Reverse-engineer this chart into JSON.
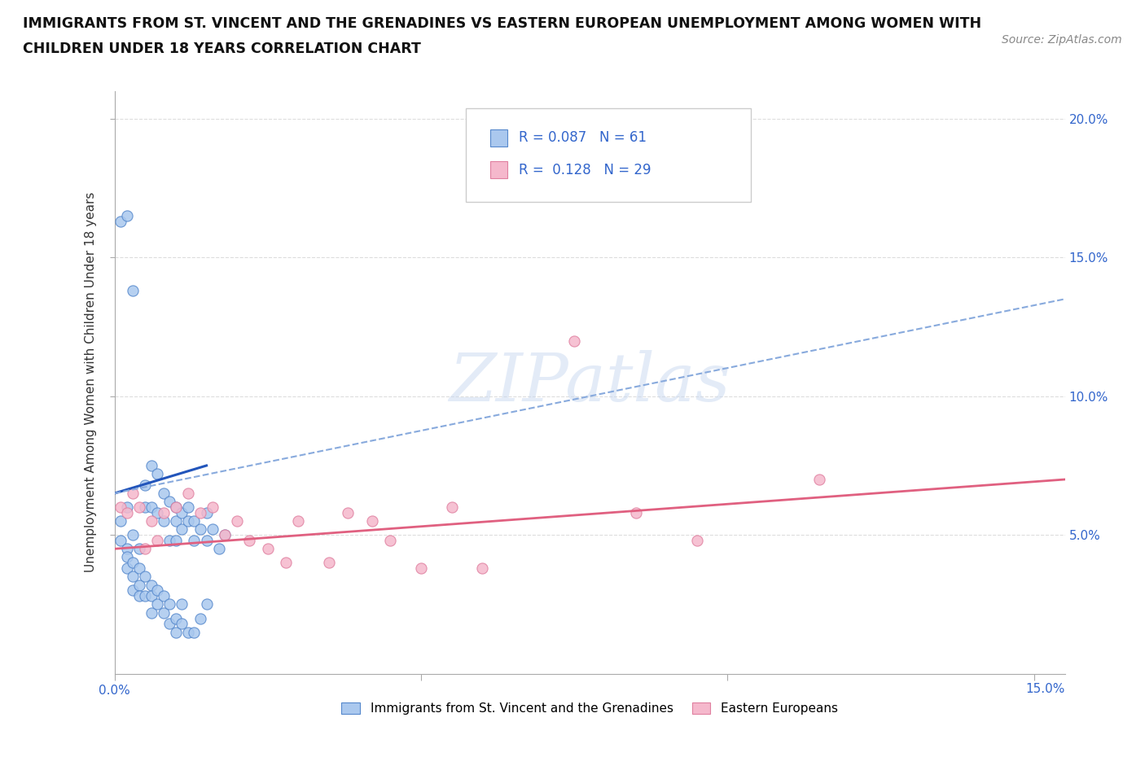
{
  "title_line1": "IMMIGRANTS FROM ST. VINCENT AND THE GRENADINES VS EASTERN EUROPEAN UNEMPLOYMENT AMONG WOMEN WITH",
  "title_line2": "CHILDREN UNDER 18 YEARS CORRELATION CHART",
  "source": "Source: ZipAtlas.com",
  "ylabel": "Unemployment Among Women with Children Under 18 years",
  "xlim": [
    0,
    0.155
  ],
  "ylim": [
    0,
    0.21
  ],
  "xticks": [
    0.0,
    0.05,
    0.1,
    0.15
  ],
  "yticks": [
    0.05,
    0.1,
    0.15,
    0.2
  ],
  "xtick_labels": [
    "0.0%",
    "",
    "",
    ""
  ],
  "ytick_labels": [
    "5.0%",
    "10.0%",
    "15.0%",
    "20.0%"
  ],
  "blue_face": "#aac8ee",
  "blue_edge": "#5588cc",
  "pink_face": "#f5b8cc",
  "pink_edge": "#e080a0",
  "trend_blue_solid": "#2255bb",
  "trend_blue_dash": "#88aadd",
  "trend_pink": "#e06080",
  "grid_color": "#dddddd",
  "R_blue": "0.087",
  "N_blue": "61",
  "R_pink": "0.128",
  "N_pink": "29",
  "legend_blue": "Immigrants from St. Vincent and the Grenadines",
  "legend_pink": "Eastern Europeans",
  "watermark_text": "ZIPatlas",
  "blue_x": [
    0.001,
    0.002,
    0.002,
    0.003,
    0.004,
    0.005,
    0.005,
    0.006,
    0.006,
    0.007,
    0.007,
    0.008,
    0.008,
    0.009,
    0.009,
    0.01,
    0.01,
    0.01,
    0.011,
    0.011,
    0.012,
    0.012,
    0.013,
    0.013,
    0.014,
    0.015,
    0.015,
    0.016,
    0.017,
    0.018,
    0.001,
    0.001,
    0.002,
    0.002,
    0.002,
    0.003,
    0.003,
    0.003,
    0.004,
    0.004,
    0.004,
    0.005,
    0.005,
    0.006,
    0.006,
    0.006,
    0.007,
    0.007,
    0.008,
    0.008,
    0.009,
    0.009,
    0.01,
    0.01,
    0.011,
    0.011,
    0.012,
    0.013,
    0.014,
    0.015,
    0.003
  ],
  "blue_y": [
    0.163,
    0.165,
    0.06,
    0.05,
    0.045,
    0.068,
    0.06,
    0.075,
    0.06,
    0.072,
    0.058,
    0.065,
    0.055,
    0.062,
    0.048,
    0.06,
    0.055,
    0.048,
    0.058,
    0.052,
    0.055,
    0.06,
    0.048,
    0.055,
    0.052,
    0.058,
    0.048,
    0.052,
    0.045,
    0.05,
    0.055,
    0.048,
    0.045,
    0.042,
    0.038,
    0.04,
    0.035,
    0.03,
    0.038,
    0.032,
    0.028,
    0.035,
    0.028,
    0.032,
    0.028,
    0.022,
    0.03,
    0.025,
    0.028,
    0.022,
    0.025,
    0.018,
    0.02,
    0.015,
    0.025,
    0.018,
    0.015,
    0.015,
    0.02,
    0.025,
    0.138
  ],
  "pink_x": [
    0.001,
    0.002,
    0.003,
    0.004,
    0.005,
    0.006,
    0.007,
    0.008,
    0.01,
    0.012,
    0.014,
    0.016,
    0.018,
    0.02,
    0.022,
    0.025,
    0.028,
    0.03,
    0.035,
    0.038,
    0.042,
    0.045,
    0.05,
    0.055,
    0.06,
    0.075,
    0.085,
    0.095,
    0.115
  ],
  "pink_y": [
    0.06,
    0.058,
    0.065,
    0.06,
    0.045,
    0.055,
    0.048,
    0.058,
    0.06,
    0.065,
    0.058,
    0.06,
    0.05,
    0.055,
    0.048,
    0.045,
    0.04,
    0.055,
    0.04,
    0.058,
    0.055,
    0.048,
    0.038,
    0.06,
    0.038,
    0.12,
    0.058,
    0.048,
    0.07
  ],
  "trend_blue_x0": 0.0,
  "trend_blue_x1": 0.015,
  "trend_blue_y0": 0.065,
  "trend_blue_y1": 0.075,
  "trend_dash_x0": 0.0,
  "trend_dash_x1": 0.155,
  "trend_dash_y0": 0.065,
  "trend_dash_y1": 0.135,
  "trend_pink_x0": 0.0,
  "trend_pink_x1": 0.155,
  "trend_pink_y0": 0.045,
  "trend_pink_y1": 0.07
}
